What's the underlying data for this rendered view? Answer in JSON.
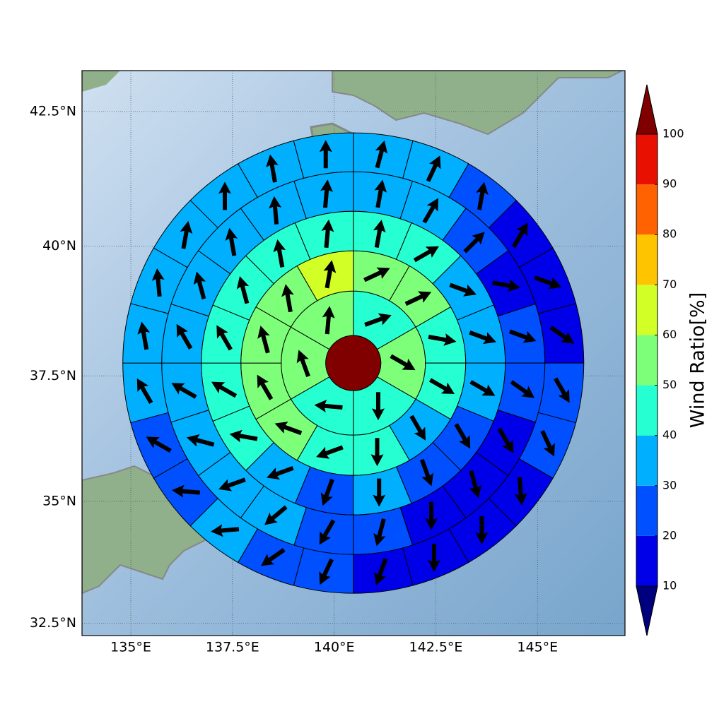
{
  "chart_data": {
    "type": "polar-grid-map",
    "projection": "mercator",
    "xlim": [
      133.8,
      147.15
    ],
    "ylim": [
      32.24,
      43.24
    ],
    "xticks": [
      {
        "value": 135,
        "label": "135°E"
      },
      {
        "value": 137.5,
        "label": "137.5°E"
      },
      {
        "value": 140,
        "label": "140°E"
      },
      {
        "value": 142.5,
        "label": "142.5°E"
      },
      {
        "value": 145,
        "label": "145°E"
      }
    ],
    "yticks": [
      {
        "value": 32.5,
        "label": "32.5°N"
      },
      {
        "value": 35,
        "label": "35°N"
      },
      {
        "value": 37.5,
        "label": "37.5°N"
      },
      {
        "value": 40,
        "label": "40°N"
      },
      {
        "value": 42.5,
        "label": "42.5°N"
      }
    ],
    "grid": true,
    "center": {
      "lon": 140.47,
      "lat": 37.75,
      "value": 105
    },
    "rings": [
      {
        "values": [
          45,
          55,
          45,
          45,
          55,
          55
        ],
        "directions": [
          70,
          120,
          180,
          275,
          340,
          5
        ]
      },
      {
        "values": [
          55,
          55,
          45,
          45,
          35,
          45,
          45,
          55,
          55,
          55,
          55,
          65
        ],
        "directions": [
          65,
          65,
          100,
          120,
          150,
          180,
          250,
          290,
          330,
          345,
          350,
          10
        ]
      },
      {
        "values": [
          45,
          45,
          35,
          35,
          35,
          25,
          25,
          35,
          25,
          35,
          45,
          45,
          45,
          45,
          45,
          45
        ],
        "directions": [
          10,
          60,
          110,
          110,
          120,
          150,
          160,
          180,
          200,
          250,
          280,
          300,
          330,
          345,
          350,
          5
        ]
      },
      {
        "values": [
          35,
          35,
          25,
          15,
          25,
          25,
          15,
          15,
          15,
          25,
          25,
          35,
          35,
          35,
          35,
          35,
          35,
          35,
          35,
          35
        ],
        "directions": [
          10,
          30,
          45,
          100,
          110,
          125,
          150,
          165,
          180,
          195,
          210,
          230,
          250,
          285,
          300,
          330,
          345,
          350,
          355,
          5
        ]
      },
      {
        "values": [
          35,
          35,
          25,
          15,
          15,
          15,
          25,
          25,
          15,
          15,
          15,
          15,
          25,
          25,
          35,
          25,
          25,
          35,
          35,
          35,
          35,
          35,
          35,
          35
        ],
        "directions": [
          15,
          25,
          10,
          30,
          110,
          125,
          150,
          155,
          175,
          180,
          180,
          200,
          205,
          235,
          265,
          275,
          300,
          330,
          350,
          355,
          10,
          0,
          350,
          0
        ]
      }
    ],
    "colorbar": {
      "label": "Wind Ratio[%]",
      "levels": [
        10,
        20,
        30,
        40,
        50,
        60,
        70,
        80,
        90,
        100
      ],
      "colors": [
        "#0000e8",
        "#0050ff",
        "#00b0ff",
        "#26ffd1",
        "#7dff7a",
        "#d1ff26",
        "#ffc400",
        "#ff6200",
        "#e81000"
      ],
      "under": "#00007f",
      "over": "#800000"
    }
  }
}
